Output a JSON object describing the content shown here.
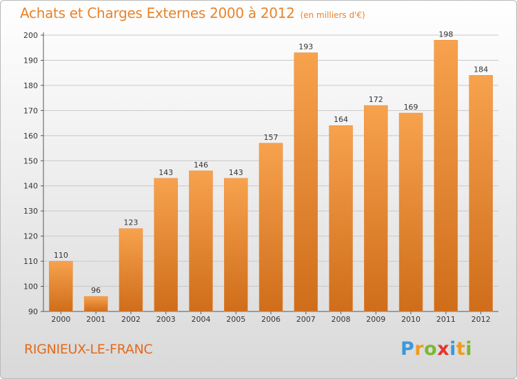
{
  "title": "Achats et Charges Externes 2000 à 2012",
  "subtitle": "(en milliers d'€)",
  "commune": "RIGNIEUX-LE-FRANC",
  "logo": {
    "letters": [
      "P",
      "r",
      "o",
      "x",
      "i",
      "t",
      "i"
    ],
    "colors": [
      "#3a9ad9",
      "#f29a1f",
      "#7cb82f",
      "#e8332a",
      "#3a9ad9",
      "#f29a1f",
      "#7cb82f"
    ]
  },
  "colors": {
    "bar_top": "#f7a24e",
    "bar_bottom": "#cf6d1a",
    "title": "#e8832a",
    "grid": "#c8c8c8"
  },
  "chart_data": {
    "type": "bar",
    "title": "Achats et Charges Externes 2000 à 2012",
    "subtitle": "(en milliers d'€)",
    "categories": [
      "2000",
      "2001",
      "2002",
      "2003",
      "2004",
      "2005",
      "2006",
      "2007",
      "2008",
      "2009",
      "2010",
      "2011",
      "2012"
    ],
    "values": [
      110,
      96,
      123,
      143,
      146,
      143,
      157,
      193,
      164,
      172,
      169,
      198,
      184
    ],
    "ylim": [
      90,
      200
    ],
    "yticks": [
      90,
      100,
      110,
      120,
      130,
      140,
      150,
      160,
      170,
      180,
      190,
      200
    ],
    "grid": true,
    "xlabel": "",
    "ylabel": ""
  }
}
